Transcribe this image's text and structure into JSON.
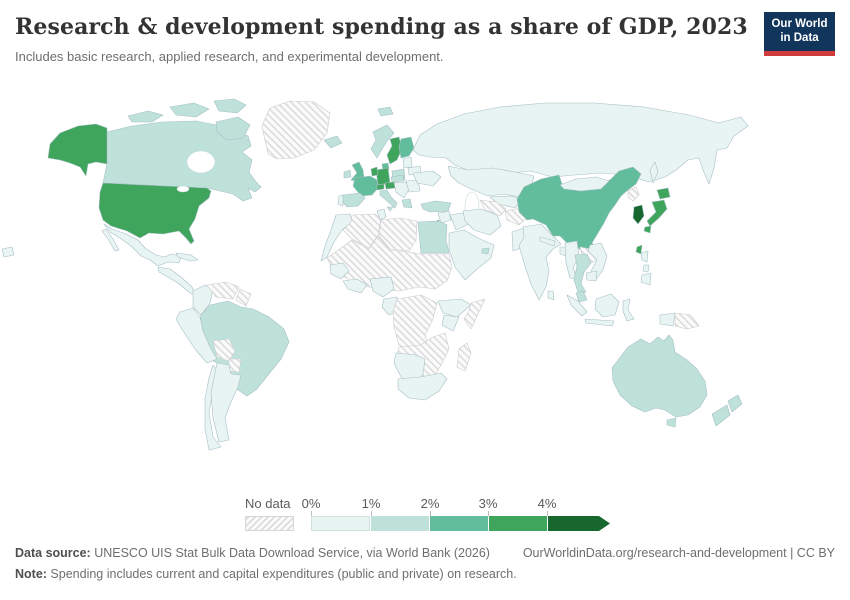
{
  "header": {
    "title": "Research & development spending as a share of GDP, 2023",
    "subtitle": "Includes basic research, applied research, and experimental development.",
    "logo_line1": "Our World",
    "logo_line2": "in Data",
    "logo_bg": "#12355c",
    "logo_accent": "#d13c3c"
  },
  "legend": {
    "no_data_label": "No data",
    "ticks": [
      "0%",
      "1%",
      "2%",
      "3%",
      "4%"
    ],
    "bins": [
      {
        "range": "0-1%",
        "color": "#e8f4f1"
      },
      {
        "range": "1-2%",
        "color": "#bee2da"
      },
      {
        "range": "2-3%",
        "color": "#62bd9c"
      },
      {
        "range": "3-4%",
        "color": "#3fa45c"
      },
      {
        "range": "4%+",
        "color": "#17672f"
      }
    ]
  },
  "map": {
    "border_color": "#a7bfc7",
    "no_data_border_color": "#cccccc",
    "region_fills": {
      "alaska": "#3fa45c",
      "usa": "#3fa45c",
      "canada": "#bee2da",
      "canada-islands": "#bee2da",
      "greenland": "hatch",
      "mexico": "#e8f4f1",
      "central-america": "#e8f4f1",
      "cuba": "#e8f4f1",
      "colombia": "#e8f4f1",
      "venezuela": "hatch",
      "guyanas": "hatch",
      "brazil": "#bee2da",
      "peru-ecuador": "#e8f4f1",
      "bolivia": "hatch",
      "paraguay": "hatch",
      "argentina": "#e8f4f1",
      "chile": "#e8f4f1",
      "iceland": "#bee2da",
      "svalbard": "#bee2da",
      "norway": "#bee2da",
      "sweden": "#3fa45c",
      "finland": "#62bd9c",
      "denmark": "#62bd9c",
      "uk": "#62bd9c",
      "ireland": "#bee2da",
      "baltics": "#e8f4f1",
      "belarus": "#e8f4f1",
      "poland": "#bee2da",
      "germany": "#3fa45c",
      "benelux": "#3fa45c",
      "france": "#62bd9c",
      "switzerland": "#3fa45c",
      "austria": "#3fa45c",
      "czechia-slovakia": "#bee2da",
      "italy": "#bee2da",
      "spain": "#bee2da",
      "portugal": "#e8f4f1",
      "balkans": "#e8f4f1",
      "greece": "#bee2da",
      "romania-bulgaria": "#e8f4f1",
      "ukraine": "#e8f4f1",
      "russia": "#e8f4f1",
      "sakhalin": "#e8f4f1",
      "chukotka": "#e8f4f1",
      "kazakhstan": "#e8f4f1",
      "uzbek-kyrgyz": "#e8f4f1",
      "turkmenistan": "hatch",
      "afghanistan": "hatch",
      "pakistan": "#e8f4f1",
      "turkey": "#bee2da",
      "syria-jordan": "#e8f4f1",
      "israel": "#17672f",
      "iraq": "#e8f4f1",
      "iran": "#e8f4f1",
      "arabia": "#e8f4f1",
      "uae": "#bee2da",
      "morocco": "#e8f4f1",
      "algeria": "hatch",
      "tunisia": "#e8f4f1",
      "libya": "hatch",
      "egypt": "#bee2da",
      "sahel": "hatch",
      "senegal-guinea": "#e8f4f1",
      "west-africa-coast": "#e8f4f1",
      "nigeria": "#e8f4f1",
      "cameroon-gabon": "#e8f4f1",
      "congo-basin": "hatch",
      "ethiopia": "#e8f4f1",
      "somalia": "hatch",
      "kenya": "#e8f4f1",
      "southeast-africa": "hatch",
      "namibia-botswana": "#e8f4f1",
      "south-africa": "#e8f4f1",
      "madagascar": "hatch",
      "india": "#e8f4f1",
      "sri-lanka": "#e8f4f1",
      "nepal": "#e8f4f1",
      "bangladesh": "#e8f4f1",
      "myanmar": "#e8f4f1",
      "thailand": "#bee2da",
      "laos": "hatch",
      "vietnam": "#e8f4f1",
      "cambodia": "#e8f4f1",
      "malaysia": "#bee2da",
      "indonesia": "#e8f4f1",
      "papua-new-guinea": "hatch",
      "philippines": "#e8f4f1",
      "china": "#62bd9c",
      "mongolia": "#e8f4f1",
      "north-korea": "hatch",
      "south-korea": "#17672f",
      "japan": "#3fa45c",
      "taiwan": "#3fa45c",
      "australia": "#bee2da",
      "new-zealand": "#bee2da"
    }
  },
  "footer": {
    "source_label": "Data source:",
    "source_text": " UNESCO UIS Stat Bulk Data Download Service, via World Bank (2026)",
    "cite_text": "OurWorldinData.org/research-and-development | CC BY",
    "note_label": "Note:",
    "note_text": " Spending includes current and capital expenditures (public and private) on research."
  },
  "chart_data": {
    "type": "choropleth",
    "title": "Research & development spending as a share of GDP, 2023",
    "unit": "% of GDP",
    "legend_position": "bottom",
    "legend_bins": [
      {
        "range": "0-1%",
        "color": "#e8f4f1"
      },
      {
        "range": "1-2%",
        "color": "#bee2da"
      },
      {
        "range": "2-3%",
        "color": "#62bd9c"
      },
      {
        "range": "3-4%",
        "color": "#3fa45c"
      },
      {
        "range": "4%+",
        "color": "#17672f"
      }
    ],
    "countries": {
      "United States": "3-4%",
      "Canada": "1-2%",
      "Mexico": "0-1%",
      "Cuba": "0-1%",
      "Brazil": "1-2%",
      "Colombia": "0-1%",
      "Peru": "0-1%",
      "Ecuador": "0-1%",
      "Chile": "0-1%",
      "Argentina": "0-1%",
      "Iceland": "1-2%",
      "United Kingdom": "2-3%",
      "Ireland": "1-2%",
      "Norway": "1-2%",
      "Sweden": "3-4%",
      "Finland": "2-3%",
      "Denmark": "2-3%",
      "Germany": "3-4%",
      "Netherlands": "2-3%",
      "Belgium": "3-4%",
      "France": "2-3%",
      "Switzerland": "3-4%",
      "Austria": "3-4%",
      "Czechia": "1-2%",
      "Poland": "1-2%",
      "Spain": "1-2%",
      "Portugal": "0-1%",
      "Italy": "1-2%",
      "Greece": "1-2%",
      "Ukraine": "0-1%",
      "Belarus": "0-1%",
      "Russia": "0-1%",
      "Turkey": "1-2%",
      "Israel": "4%+",
      "Egypt": "1-2%",
      "Saudi Arabia": "0-1%",
      "United Arab Emirates": "1-2%",
      "Iran": "0-1%",
      "Iraq": "0-1%",
      "Kazakhstan": "0-1%",
      "Pakistan": "0-1%",
      "India": "0-1%",
      "Sri Lanka": "0-1%",
      "Bangladesh": "0-1%",
      "Myanmar": "0-1%",
      "Thailand": "1-2%",
      "Vietnam": "0-1%",
      "Cambodia": "0-1%",
      "Malaysia": "1-2%",
      "Indonesia": "0-1%",
      "Philippines": "0-1%",
      "China": "2-3%",
      "Mongolia": "0-1%",
      "South Korea": "4%+",
      "Japan": "3-4%",
      "Taiwan": "3-4%",
      "Australia": "1-2%",
      "New Zealand": "1-2%",
      "Morocco": "0-1%",
      "Tunisia": "0-1%",
      "Senegal": "0-1%",
      "Nigeria": "0-1%",
      "Ethiopia": "0-1%",
      "Kenya": "0-1%",
      "Namibia": "0-1%",
      "Botswana": "0-1%",
      "South Africa": "0-1%"
    },
    "no_data": [
      "Greenland",
      "Venezuela",
      "Bolivia",
      "Paraguay",
      "Guyana",
      "Suriname",
      "Algeria",
      "Libya",
      "Mali",
      "Niger",
      "Chad",
      "Sudan",
      "South Sudan",
      "DR Congo",
      "Angola",
      "Zambia",
      "Zimbabwe",
      "Tanzania",
      "Mozambique",
      "Somalia",
      "Madagascar",
      "Turkmenistan",
      "Afghanistan",
      "Laos",
      "North Korea",
      "Papua New Guinea"
    ]
  }
}
